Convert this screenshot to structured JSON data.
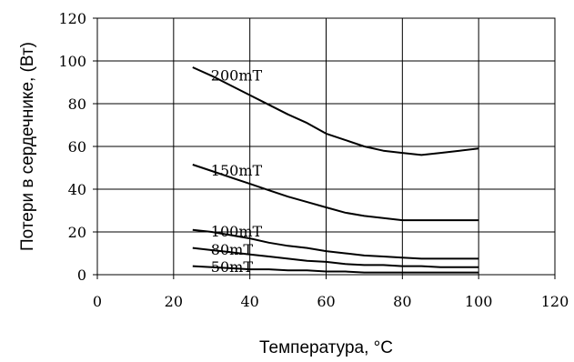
{
  "chart_data": {
    "type": "line",
    "title": "",
    "xlabel": "Температура, °C",
    "ylabel": "Потери в сердечнике, (Вт)",
    "xlim": [
      0,
      120
    ],
    "ylim": [
      0,
      120
    ],
    "xticks": [
      "0",
      "20",
      "40",
      "60",
      "80",
      "100",
      "120"
    ],
    "yticks": [
      "0",
      "20",
      "40",
      "60",
      "80",
      "100",
      "120"
    ],
    "grid": true,
    "series": [
      {
        "name": "200mT",
        "x": [
          25,
          30,
          35,
          40,
          45,
          50,
          55,
          60,
          65,
          70,
          75,
          80,
          85,
          90,
          95,
          100
        ],
        "y": [
          97,
          93,
          88.5,
          84,
          79.5,
          75,
          71,
          66,
          63,
          60,
          58,
          57,
          56,
          57,
          58,
          59
        ]
      },
      {
        "name": "150mT",
        "x": [
          25,
          30,
          35,
          40,
          45,
          50,
          55,
          60,
          65,
          70,
          75,
          80,
          85,
          90,
          95,
          100
        ],
        "y": [
          51.5,
          48.5,
          45.5,
          42.5,
          39.5,
          36.5,
          34,
          31.5,
          29,
          27.5,
          26.5,
          25.5,
          25.5,
          25.5,
          25.5,
          25.5
        ]
      },
      {
        "name": "100mT",
        "x": [
          25,
          30,
          35,
          40,
          45,
          50,
          55,
          60,
          65,
          70,
          75,
          80,
          85,
          90,
          95,
          100
        ],
        "y": [
          21,
          20,
          18.5,
          17,
          15,
          13.5,
          12.5,
          11,
          10,
          9,
          8.5,
          8,
          7.5,
          7.5,
          7.5,
          7.5
        ]
      },
      {
        "name": "80mT",
        "x": [
          25,
          30,
          35,
          40,
          45,
          50,
          55,
          60,
          65,
          70,
          75,
          80,
          85,
          90,
          95,
          100
        ],
        "y": [
          12.5,
          11.5,
          10.5,
          9.5,
          8.5,
          7.5,
          6.5,
          6,
          5,
          4.5,
          4.5,
          4,
          4,
          3.5,
          3.5,
          3.5
        ]
      },
      {
        "name": "50mT",
        "x": [
          25,
          30,
          35,
          40,
          45,
          50,
          55,
          60,
          65,
          70,
          75,
          80,
          85,
          90,
          95,
          100
        ],
        "y": [
          4,
          3.5,
          3,
          2.5,
          2.5,
          2,
          2,
          1.5,
          1.5,
          1,
          1,
          1,
          1,
          1,
          1,
          1
        ]
      }
    ]
  }
}
